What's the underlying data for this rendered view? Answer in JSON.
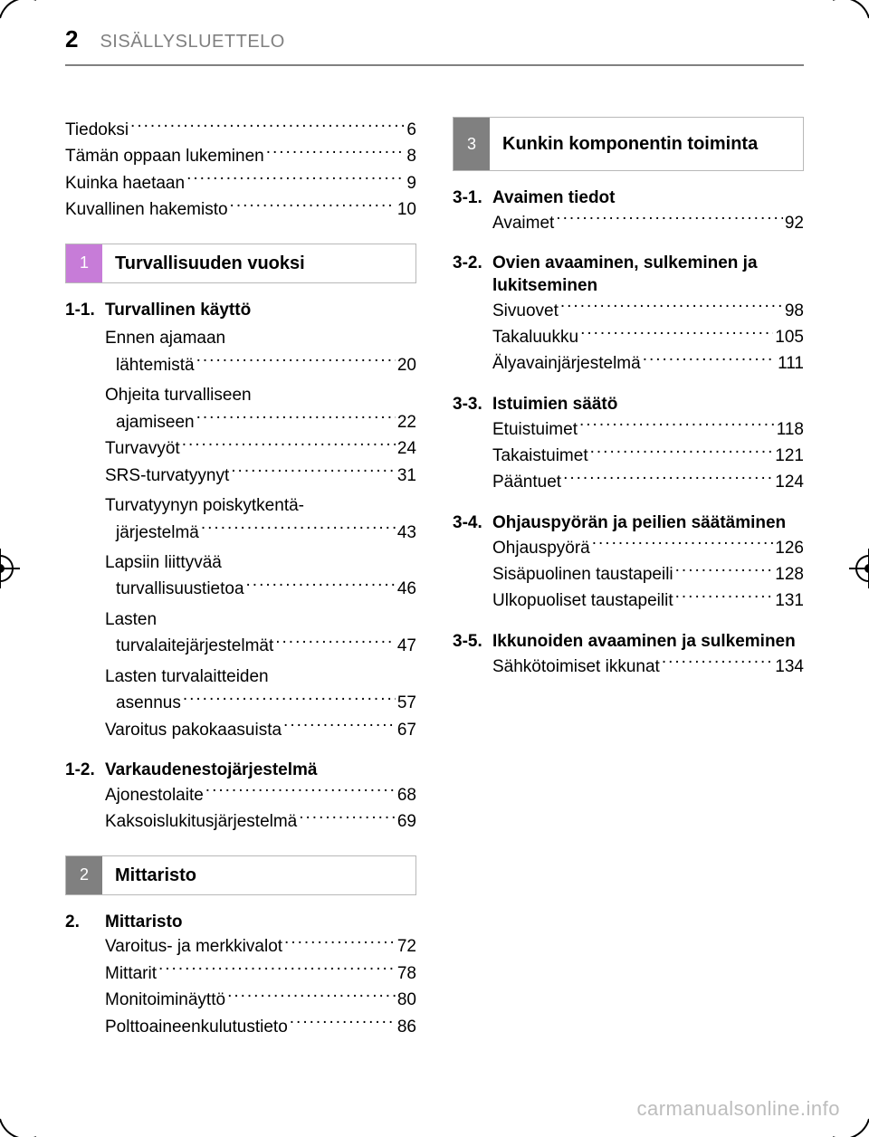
{
  "header": {
    "page_number": "2",
    "title": "SISÄLLYSLUETTELO"
  },
  "colors": {
    "background": "#ffffff",
    "text": "#000000",
    "header_text": "#808080",
    "rule": "#808080",
    "chapter_border": "#b8b8b8",
    "tab1_bg": "#c77cd8",
    "tab2_bg": "#808080",
    "tab3_bg": "#808080",
    "tab_text": "#ffffff",
    "watermark": "#bdbdbd"
  },
  "intro": [
    {
      "label": "Tiedoksi",
      "page": "6"
    },
    {
      "label": "Tämän oppaan lukeminen",
      "page": "8"
    },
    {
      "label": "Kuinka haetaan",
      "page": "9"
    },
    {
      "label": "Kuvallinen hakemisto",
      "page": "10"
    }
  ],
  "chapter1": {
    "tab": "1",
    "title": "Turvallisuuden vuoksi",
    "sections": [
      {
        "num": "1-1.",
        "heading": "Turvallinen käyttö",
        "items": [
          {
            "label_lines": [
              "Ennen ajamaan",
              "lähtemistä"
            ],
            "page": "20"
          },
          {
            "label_lines": [
              "Ohjeita turvalliseen",
              "ajamiseen"
            ],
            "page": "22"
          },
          {
            "label_lines": [
              "Turvavyöt"
            ],
            "page": "24"
          },
          {
            "label_lines": [
              "SRS-turvatyynyt"
            ],
            "page": "31"
          },
          {
            "label_lines": [
              "Turvatyynyn poiskytkentä-",
              "järjestelmä"
            ],
            "page": "43"
          },
          {
            "label_lines": [
              "Lapsiin liittyvää",
              "turvallisuustietoa"
            ],
            "page": "46"
          },
          {
            "label_lines": [
              "Lasten",
              "turvalaitejärjestelmät"
            ],
            "page": "47"
          },
          {
            "label_lines": [
              "Lasten turvalaitteiden",
              "asennus"
            ],
            "page": "57"
          },
          {
            "label_lines": [
              "Varoitus pakokaasuista"
            ],
            "page": "67"
          }
        ]
      },
      {
        "num": "1-2.",
        "heading": "Varkaudenestojärjestelmä",
        "items": [
          {
            "label_lines": [
              "Ajonestolaite"
            ],
            "page": "68"
          },
          {
            "label_lines": [
              "Kaksoislukitusjärjestelmä"
            ],
            "page": "69"
          }
        ]
      }
    ]
  },
  "chapter2": {
    "tab": "2",
    "title": "Mittaristo",
    "sections": [
      {
        "num": "2.",
        "heading": "Mittaristo",
        "items": [
          {
            "label_lines": [
              "Varoitus- ja merkkivalot"
            ],
            "page": "72"
          },
          {
            "label_lines": [
              "Mittarit"
            ],
            "page": "78"
          },
          {
            "label_lines": [
              "Monitoiminäyttö"
            ],
            "page": "80"
          },
          {
            "label_lines": [
              "Polttoaineenkulutustieto"
            ],
            "page": "86"
          }
        ]
      }
    ]
  },
  "chapter3": {
    "tab": "3",
    "title": "Kunkin komponentin toiminta",
    "sections": [
      {
        "num": "3-1.",
        "heading": "Avaimen tiedot",
        "items": [
          {
            "label_lines": [
              "Avaimet"
            ],
            "page": "92"
          }
        ]
      },
      {
        "num": "3-2.",
        "heading": "Ovien avaaminen, sulkeminen ja lukitseminen",
        "items": [
          {
            "label_lines": [
              "Sivuovet"
            ],
            "page": "98"
          },
          {
            "label_lines": [
              "Takaluukku"
            ],
            "page": "105"
          },
          {
            "label_lines": [
              "Älyavainjärjestelmä"
            ],
            "page": "111"
          }
        ]
      },
      {
        "num": "3-3.",
        "heading": "Istuimien säätö",
        "items": [
          {
            "label_lines": [
              "Etuistuimet"
            ],
            "page": "118"
          },
          {
            "label_lines": [
              "Takaistuimet"
            ],
            "page": "121"
          },
          {
            "label_lines": [
              "Pääntuet"
            ],
            "page": "124"
          }
        ]
      },
      {
        "num": "3-4.",
        "heading": "Ohjauspyörän ja peilien säätäminen",
        "items": [
          {
            "label_lines": [
              "Ohjauspyörä"
            ],
            "page": "126"
          },
          {
            "label_lines": [
              "Sisäpuolinen taustapeili"
            ],
            "page": "128"
          },
          {
            "label_lines": [
              "Ulkopuoliset taustapeilit"
            ],
            "page": "131"
          }
        ]
      },
      {
        "num": "3-5.",
        "heading": "Ikkunoiden avaaminen ja sulkeminen",
        "items": [
          {
            "label_lines": [
              "Sähkötoimiset ikkunat"
            ],
            "page": "134"
          }
        ]
      }
    ]
  },
  "watermark": "carmanualsonline.info"
}
